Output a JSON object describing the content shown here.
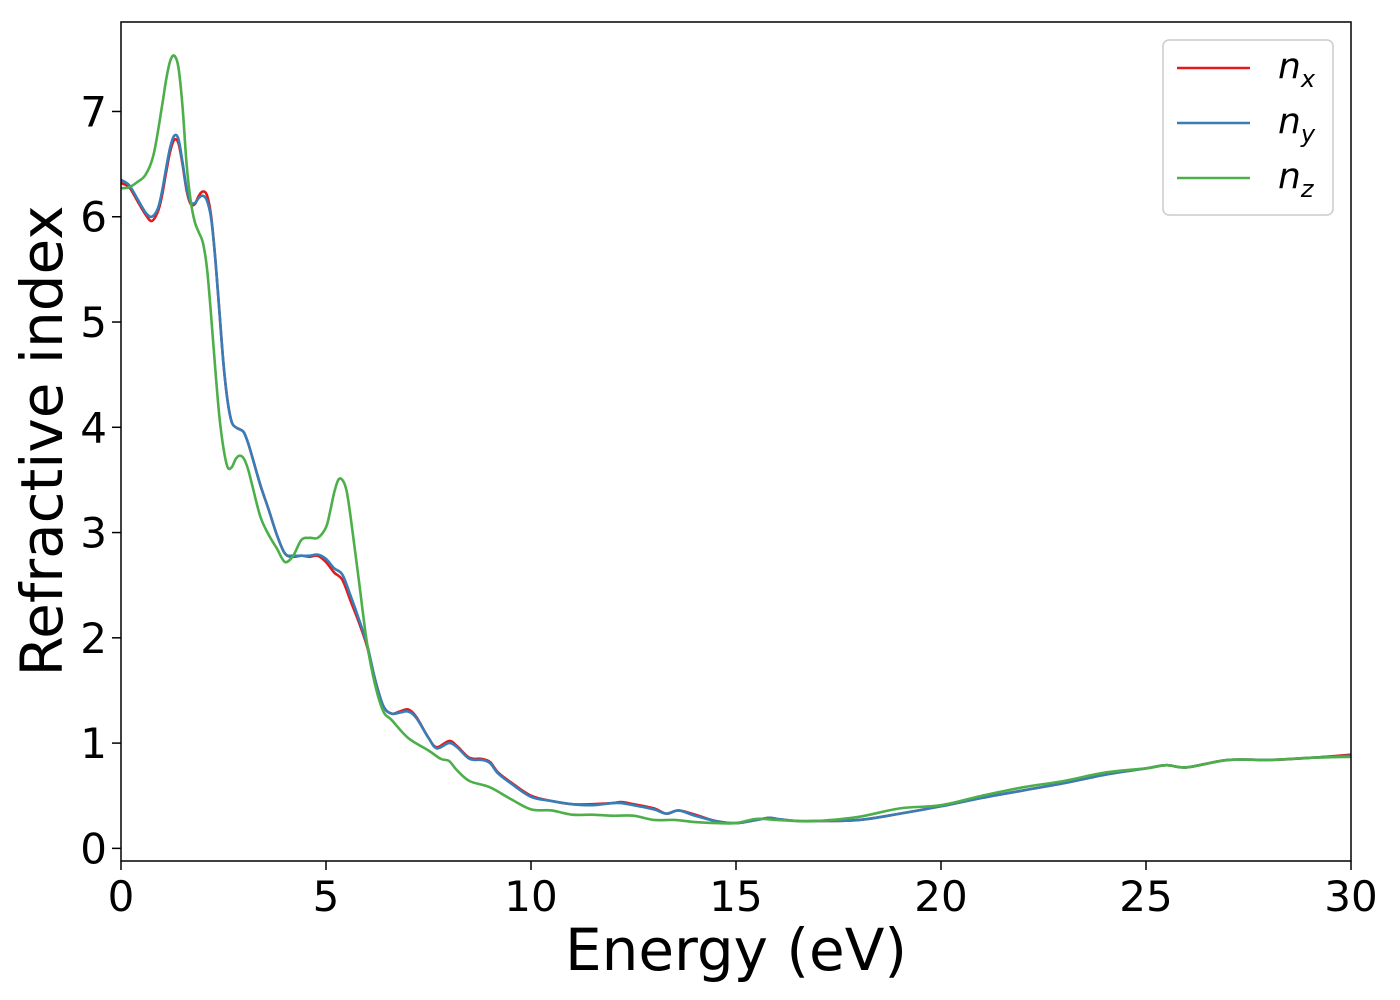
{
  "chart_data": {
    "type": "line",
    "title": "",
    "xlabel": "Energy (eV)",
    "ylabel": "Refractive index",
    "xlim": [
      0,
      30
    ],
    "ylim": [
      -0.12,
      7.85
    ],
    "xticks": [
      0,
      5,
      10,
      15,
      20,
      25,
      30
    ],
    "yticks": [
      0,
      1,
      2,
      3,
      4,
      5,
      6,
      7
    ],
    "xtick_labels": [
      "0",
      "5",
      "10",
      "15",
      "20",
      "25",
      "30"
    ],
    "ytick_labels": [
      "0",
      "1",
      "2",
      "3",
      "4",
      "5",
      "6",
      "7"
    ],
    "grid": false,
    "legend_position": "top-right",
    "series": [
      {
        "name": "n_x",
        "label_base": "n",
        "label_sub": "x",
        "color": "#e41a1c",
        "x": [
          0,
          0.2,
          0.4,
          0.6,
          0.75,
          0.9,
          1.0,
          1.1,
          1.2,
          1.3,
          1.4,
          1.5,
          1.6,
          1.7,
          1.8,
          1.9,
          2.0,
          2.1,
          2.2,
          2.3,
          2.4,
          2.5,
          2.6,
          2.7,
          2.8,
          2.9,
          3.0,
          3.1,
          3.2,
          3.4,
          3.6,
          3.8,
          4.0,
          4.2,
          4.4,
          4.6,
          4.8,
          5.0,
          5.2,
          5.4,
          5.6,
          5.8,
          6.0,
          6.2,
          6.4,
          6.6,
          6.8,
          7.0,
          7.2,
          7.5,
          7.7,
          8.0,
          8.2,
          8.5,
          8.8,
          9.0,
          9.2,
          9.5,
          10.0,
          10.5,
          11.0,
          11.5,
          12.0,
          12.2,
          12.5,
          13.0,
          13.3,
          13.6,
          14.0,
          14.5,
          15.0,
          15.5,
          15.8,
          16.0,
          16.5,
          17.0,
          18.0,
          19.0,
          20.0,
          21.0,
          22.0,
          23.0,
          24.0,
          25.0,
          25.5,
          26.0,
          27.0,
          28.0,
          29.0,
          30.0
        ],
        "y": [
          6.32,
          6.28,
          6.15,
          6.02,
          5.96,
          6.05,
          6.2,
          6.42,
          6.62,
          6.73,
          6.7,
          6.5,
          6.25,
          6.12,
          6.12,
          6.2,
          6.24,
          6.2,
          6.0,
          5.6,
          5.1,
          4.6,
          4.25,
          4.05,
          4.0,
          3.98,
          3.95,
          3.85,
          3.72,
          3.45,
          3.22,
          2.98,
          2.8,
          2.77,
          2.78,
          2.77,
          2.78,
          2.72,
          2.62,
          2.55,
          2.35,
          2.15,
          1.92,
          1.6,
          1.35,
          1.28,
          1.3,
          1.32,
          1.25,
          1.05,
          0.96,
          1.02,
          0.97,
          0.86,
          0.85,
          0.82,
          0.72,
          0.63,
          0.5,
          0.45,
          0.42,
          0.42,
          0.43,
          0.44,
          0.42,
          0.38,
          0.33,
          0.36,
          0.32,
          0.26,
          0.24,
          0.27,
          0.29,
          0.28,
          0.26,
          0.26,
          0.27,
          0.33,
          0.4,
          0.48,
          0.55,
          0.62,
          0.7,
          0.76,
          0.79,
          0.77,
          0.84,
          0.84,
          0.86,
          0.89
        ]
      },
      {
        "name": "n_y",
        "label_base": "n",
        "label_sub": "y",
        "color": "#377eb8",
        "x": [
          0,
          0.2,
          0.4,
          0.6,
          0.75,
          0.9,
          1.0,
          1.1,
          1.2,
          1.3,
          1.4,
          1.5,
          1.6,
          1.7,
          1.8,
          1.9,
          2.0,
          2.1,
          2.2,
          2.3,
          2.4,
          2.5,
          2.6,
          2.7,
          2.8,
          2.9,
          3.0,
          3.1,
          3.2,
          3.4,
          3.6,
          3.8,
          4.0,
          4.2,
          4.4,
          4.6,
          4.8,
          5.0,
          5.2,
          5.4,
          5.6,
          5.8,
          6.0,
          6.2,
          6.4,
          6.6,
          6.8,
          7.0,
          7.2,
          7.5,
          7.7,
          8.0,
          8.2,
          8.5,
          8.8,
          9.0,
          9.2,
          9.5,
          10.0,
          10.5,
          11.0,
          11.5,
          12.0,
          12.2,
          12.5,
          13.0,
          13.3,
          13.6,
          14.0,
          14.5,
          15.0,
          15.5,
          15.8,
          16.0,
          16.5,
          17.0,
          18.0,
          19.0,
          20.0,
          21.0,
          22.0,
          23.0,
          24.0,
          25.0,
          25.5,
          26.0,
          27.0,
          28.0,
          29.0,
          30.0
        ],
        "y": [
          6.35,
          6.3,
          6.17,
          6.04,
          6.0,
          6.08,
          6.24,
          6.46,
          6.66,
          6.77,
          6.74,
          6.52,
          6.27,
          6.14,
          6.13,
          6.18,
          6.2,
          6.15,
          5.98,
          5.6,
          5.1,
          4.6,
          4.25,
          4.05,
          4.0,
          3.98,
          3.95,
          3.85,
          3.72,
          3.45,
          3.22,
          2.98,
          2.8,
          2.78,
          2.78,
          2.78,
          2.79,
          2.75,
          2.66,
          2.6,
          2.4,
          2.18,
          1.94,
          1.6,
          1.35,
          1.28,
          1.29,
          1.3,
          1.24,
          1.05,
          0.95,
          1.0,
          0.96,
          0.85,
          0.84,
          0.81,
          0.71,
          0.62,
          0.49,
          0.45,
          0.42,
          0.41,
          0.43,
          0.43,
          0.41,
          0.37,
          0.33,
          0.36,
          0.31,
          0.26,
          0.24,
          0.27,
          0.29,
          0.28,
          0.26,
          0.26,
          0.27,
          0.33,
          0.4,
          0.48,
          0.55,
          0.62,
          0.7,
          0.76,
          0.79,
          0.77,
          0.84,
          0.84,
          0.86,
          0.88
        ]
      },
      {
        "name": "n_z",
        "label_base": "n",
        "label_sub": "z",
        "color": "#4daf4a",
        "x": [
          0,
          0.2,
          0.4,
          0.6,
          0.8,
          1.0,
          1.1,
          1.2,
          1.3,
          1.4,
          1.5,
          1.6,
          1.7,
          1.8,
          1.9,
          2.0,
          2.1,
          2.2,
          2.3,
          2.4,
          2.5,
          2.6,
          2.7,
          2.8,
          2.9,
          3.0,
          3.1,
          3.2,
          3.4,
          3.6,
          3.8,
          4.0,
          4.2,
          4.4,
          4.6,
          4.8,
          5.0,
          5.1,
          5.2,
          5.3,
          5.4,
          5.5,
          5.6,
          5.8,
          6.0,
          6.2,
          6.4,
          6.6,
          7.0,
          7.5,
          7.8,
          8.0,
          8.2,
          8.5,
          9.0,
          9.5,
          10.0,
          10.5,
          11.0,
          11.5,
          12.0,
          12.5,
          13.0,
          13.5,
          14.0,
          14.5,
          15.0,
          15.5,
          16.0,
          16.5,
          17.0,
          18.0,
          19.0,
          20.0,
          21.0,
          22.0,
          23.0,
          24.0,
          25.0,
          25.5,
          26.0,
          27.0,
          28.0,
          29.0,
          30.0
        ],
        "y": [
          6.27,
          6.28,
          6.33,
          6.4,
          6.6,
          7.05,
          7.3,
          7.48,
          7.53,
          7.42,
          7.05,
          6.5,
          6.15,
          5.95,
          5.85,
          5.75,
          5.5,
          5.05,
          4.55,
          4.1,
          3.8,
          3.62,
          3.62,
          3.7,
          3.73,
          3.7,
          3.6,
          3.45,
          3.15,
          2.98,
          2.85,
          2.72,
          2.78,
          2.93,
          2.95,
          2.95,
          3.05,
          3.2,
          3.38,
          3.5,
          3.5,
          3.4,
          3.15,
          2.55,
          1.95,
          1.55,
          1.3,
          1.22,
          1.05,
          0.93,
          0.85,
          0.83,
          0.74,
          0.64,
          0.58,
          0.47,
          0.37,
          0.36,
          0.32,
          0.32,
          0.31,
          0.31,
          0.27,
          0.27,
          0.25,
          0.24,
          0.24,
          0.28,
          0.27,
          0.26,
          0.26,
          0.3,
          0.38,
          0.41,
          0.5,
          0.58,
          0.64,
          0.72,
          0.76,
          0.79,
          0.77,
          0.84,
          0.84,
          0.86,
          0.87
        ]
      }
    ]
  }
}
